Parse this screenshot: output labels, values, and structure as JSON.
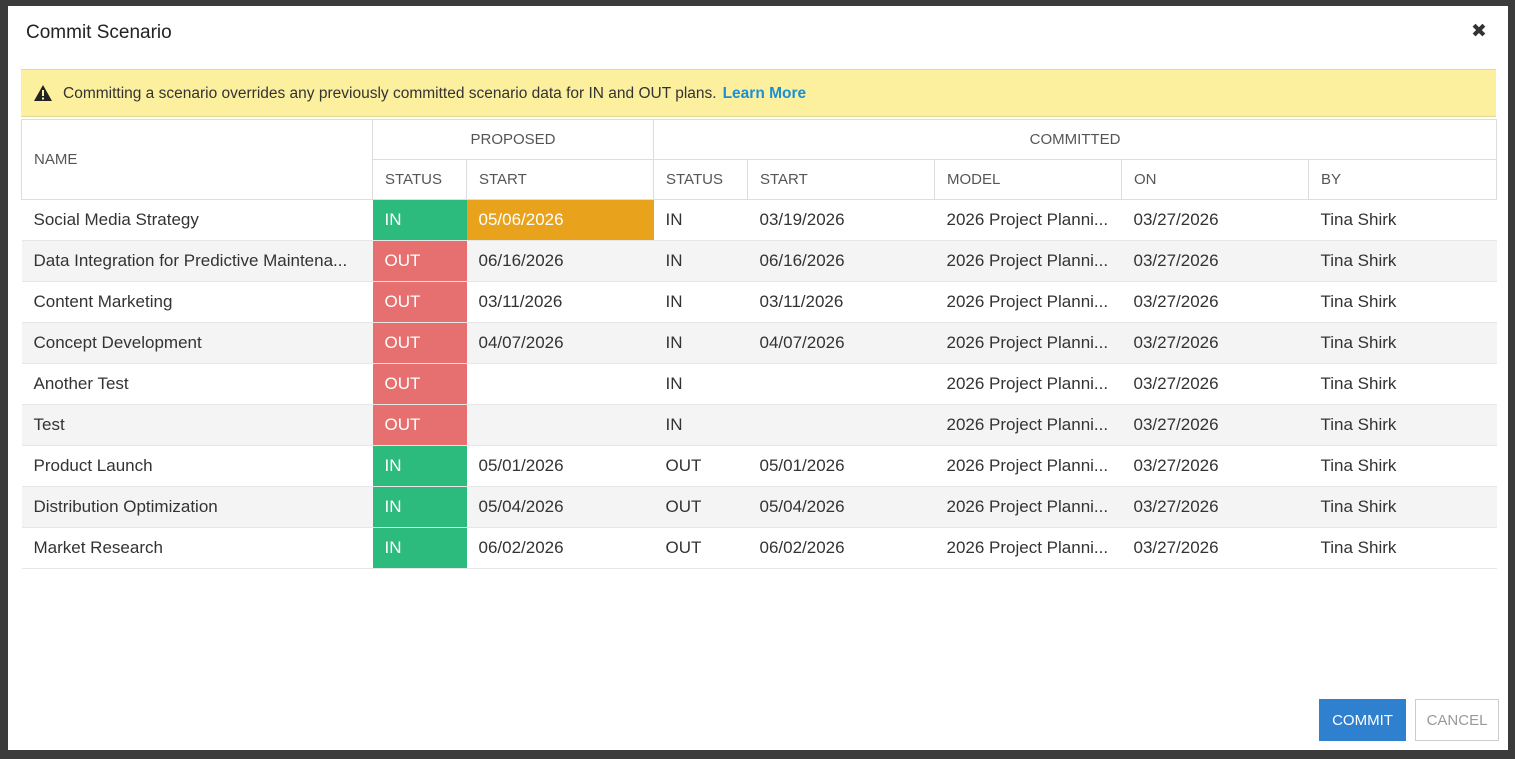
{
  "dialog": {
    "title": "Commit Scenario",
    "close": "✖",
    "banner": {
      "text": "Committing a scenario overrides any previously committed scenario data for IN and OUT plans.",
      "link": "Learn More"
    },
    "table": {
      "header": {
        "name": "NAME",
        "proposed": "PROPOSED",
        "committed": "COMMITTED",
        "columns": [
          "STATUS",
          "START",
          "STATUS",
          "START",
          "MODEL",
          "ON",
          "BY"
        ]
      },
      "rows": [
        {
          "name": "Social Media Strategy",
          "proposed_status": "IN",
          "proposed_start": "05/06/2026",
          "committed_status": "IN",
          "committed_start": "03/19/2026",
          "model": "2026 Project Planni...",
          "on": "03/27/2026",
          "by": "Tina Shirk"
        },
        {
          "name": "Data Integration for Predictive Maintena...",
          "proposed_status": "OUT",
          "proposed_start": "06/16/2026",
          "committed_status": "IN",
          "committed_start": "06/16/2026",
          "model": "2026 Project Planni...",
          "on": "03/27/2026",
          "by": "Tina Shirk"
        },
        {
          "name": "Content Marketing",
          "proposed_status": "OUT",
          "proposed_start": "03/11/2026",
          "committed_status": "IN",
          "committed_start": "03/11/2026",
          "model": "2026 Project Planni...",
          "on": "03/27/2026",
          "by": "Tina Shirk"
        },
        {
          "name": "Concept Development",
          "proposed_status": "OUT",
          "proposed_start": "04/07/2026",
          "committed_status": "IN",
          "committed_start": "04/07/2026",
          "model": "2026 Project Planni...",
          "on": "03/27/2026",
          "by": "Tina Shirk"
        },
        {
          "name": "Another Test",
          "proposed_status": "OUT",
          "committed_status": "IN",
          "model": "2026 Project Planni...",
          "on": "03/27/2026",
          "by": "Tina Shirk"
        },
        {
          "name": "Test",
          "proposed_status": "OUT",
          "committed_status": "IN",
          "model": "2026 Project Planni...",
          "on": "03/27/2026",
          "by": "Tina Shirk"
        },
        {
          "name": "Product Launch",
          "proposed_status": "IN",
          "proposed_start": "05/01/2026",
          "committed_status": "OUT",
          "committed_start": "05/01/2026",
          "model": "2026 Project Planni...",
          "on": "03/27/2026",
          "by": "Tina Shirk"
        },
        {
          "name": "Distribution Optimization",
          "proposed_status": "IN",
          "proposed_start": "05/04/2026",
          "committed_status": "OUT",
          "committed_start": "05/04/2026",
          "model": "2026 Project Planni...",
          "on": "03/27/2026",
          "by": "Tina Shirk"
        },
        {
          "name": "Market Research",
          "proposed_status": "IN",
          "proposed_start": "06/02/2026",
          "committed_status": "OUT",
          "committed_start": "06/02/2026",
          "model": "2026 Project Planni...",
          "on": "03/27/2026",
          "by": "Tina Shirk"
        }
      ]
    },
    "buttons": {
      "commit": "COMMIT",
      "cancel": "CANCEL"
    }
  }
}
